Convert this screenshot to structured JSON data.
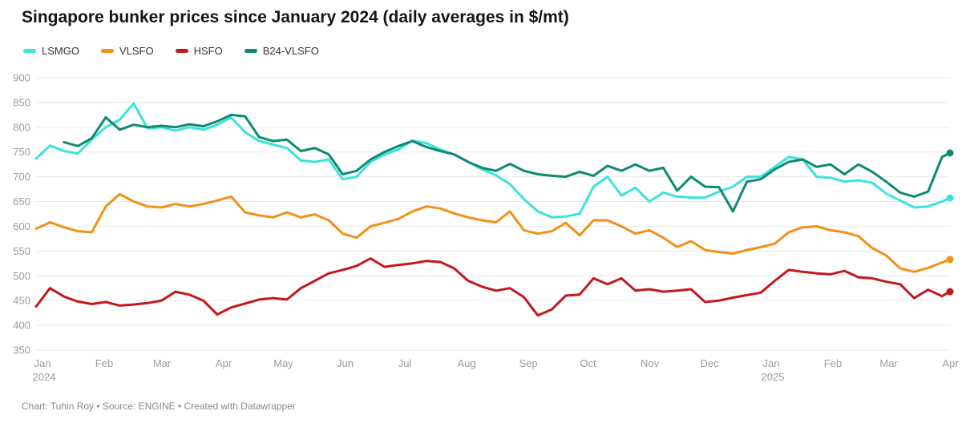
{
  "title": "Singapore bunker prices since January 2024 (daily averages in $/mt)",
  "footer": "Chart: Tuhin Roy • Source: ENGINE • Created with Datawrapper",
  "legend": [
    {
      "label": "LSMGO",
      "color": "#3be3dd"
    },
    {
      "label": "VLSFO",
      "color": "#f39019"
    },
    {
      "label": "HSFO",
      "color": "#c4181d"
    },
    {
      "label": "B24-VLSFO",
      "color": "#0e8a73"
    }
  ],
  "chart_data": {
    "type": "line",
    "title": "Singapore bunker prices since January 2024 (daily averages in $/mt)",
    "xlabel": "",
    "ylabel": "$/mt",
    "ylim": [
      350,
      900
    ],
    "grid": "horizontal",
    "legend_position": "top-left",
    "yticks": [
      350,
      400,
      450,
      500,
      550,
      600,
      650,
      700,
      750,
      800,
      850,
      900
    ],
    "x_unit": "days since 2024-01-01",
    "x_ticks": [
      {
        "day": 0,
        "label": "Jan",
        "sublabel": "2024"
      },
      {
        "day": 31,
        "label": "Feb"
      },
      {
        "day": 60,
        "label": "Mar"
      },
      {
        "day": 91,
        "label": "Apr"
      },
      {
        "day": 121,
        "label": "May"
      },
      {
        "day": 152,
        "label": "Jun"
      },
      {
        "day": 182,
        "label": "Jul"
      },
      {
        "day": 213,
        "label": "Aug"
      },
      {
        "day": 244,
        "label": "Sep"
      },
      {
        "day": 274,
        "label": "Oct"
      },
      {
        "day": 305,
        "label": "Nov"
      },
      {
        "day": 335,
        "label": "Dec"
      },
      {
        "day": 366,
        "label": "Jan",
        "sublabel": "2025"
      },
      {
        "day": 397,
        "label": "Feb"
      },
      {
        "day": 425,
        "label": "Mar"
      },
      {
        "day": 456,
        "label": "Apr"
      }
    ],
    "x_days": [
      0,
      7,
      14,
      21,
      28,
      35,
      42,
      49,
      56,
      63,
      70,
      77,
      84,
      91,
      98,
      105,
      112,
      119,
      126,
      133,
      140,
      147,
      154,
      161,
      168,
      175,
      182,
      189,
      196,
      203,
      210,
      217,
      224,
      231,
      238,
      245,
      252,
      259,
      266,
      273,
      280,
      287,
      294,
      301,
      308,
      315,
      322,
      329,
      336,
      343,
      350,
      357,
      364,
      371,
      378,
      385,
      392,
      399,
      406,
      413,
      420,
      427,
      434,
      441,
      448,
      455,
      459
    ],
    "series": [
      {
        "name": "LSMGO",
        "color": "#3be3dd",
        "values": [
          737,
          763,
          752,
          747,
          775,
          800,
          815,
          848,
          798,
          800,
          793,
          800,
          795,
          805,
          820,
          790,
          772,
          765,
          758,
          733,
          730,
          735,
          695,
          700,
          730,
          745,
          755,
          773,
          768,
          755,
          745,
          730,
          715,
          703,
          685,
          655,
          630,
          618,
          620,
          625,
          680,
          700,
          662,
          678,
          650,
          668,
          660,
          658,
          658,
          670,
          680,
          700,
          700,
          720,
          740,
          735,
          700,
          698,
          690,
          693,
          688,
          666,
          652,
          638,
          640,
          650,
          657
        ]
      },
      {
        "name": "VLSFO",
        "color": "#f39019",
        "values": [
          595,
          608,
          598,
          590,
          588,
          640,
          665,
          650,
          640,
          638,
          645,
          640,
          645,
          652,
          660,
          628,
          622,
          618,
          628,
          618,
          624,
          612,
          585,
          577,
          600,
          607,
          615,
          630,
          640,
          636,
          626,
          618,
          612,
          608,
          630,
          592,
          585,
          590,
          607,
          582,
          612,
          612,
          600,
          585,
          592,
          577,
          558,
          570,
          552,
          548,
          545,
          552,
          558,
          565,
          588,
          598,
          600,
          592,
          588,
          580,
          556,
          541,
          515,
          508,
          516,
          527,
          533
        ]
      },
      {
        "name": "HSFO",
        "color": "#c4181d",
        "values": [
          438,
          475,
          458,
          448,
          443,
          447,
          440,
          442,
          445,
          450,
          468,
          462,
          450,
          422,
          436,
          444,
          452,
          455,
          452,
          475,
          490,
          505,
          512,
          520,
          535,
          518,
          522,
          525,
          530,
          528,
          515,
          490,
          478,
          470,
          475,
          457,
          420,
          432,
          460,
          462,
          495,
          483,
          495,
          470,
          473,
          468,
          470,
          473,
          447,
          450,
          456,
          461,
          466,
          490,
          512,
          508,
          505,
          503,
          510,
          497,
          495,
          488,
          483,
          455,
          472,
          459,
          468
        ]
      },
      {
        "name": "B24-VLSFO",
        "color": "#0e8a73",
        "values": [
          null,
          null,
          770,
          762,
          778,
          820,
          795,
          805,
          800,
          803,
          800,
          806,
          802,
          812,
          825,
          822,
          780,
          772,
          775,
          752,
          758,
          745,
          705,
          712,
          735,
          750,
          762,
          772,
          760,
          752,
          745,
          730,
          718,
          712,
          726,
          712,
          705,
          702,
          700,
          710,
          702,
          722,
          712,
          725,
          712,
          718,
          672,
          700,
          680,
          679,
          630,
          690,
          695,
          715,
          730,
          735,
          720,
          725,
          705,
          725,
          710,
          690,
          668,
          660,
          670,
          740,
          748
        ]
      }
    ]
  }
}
